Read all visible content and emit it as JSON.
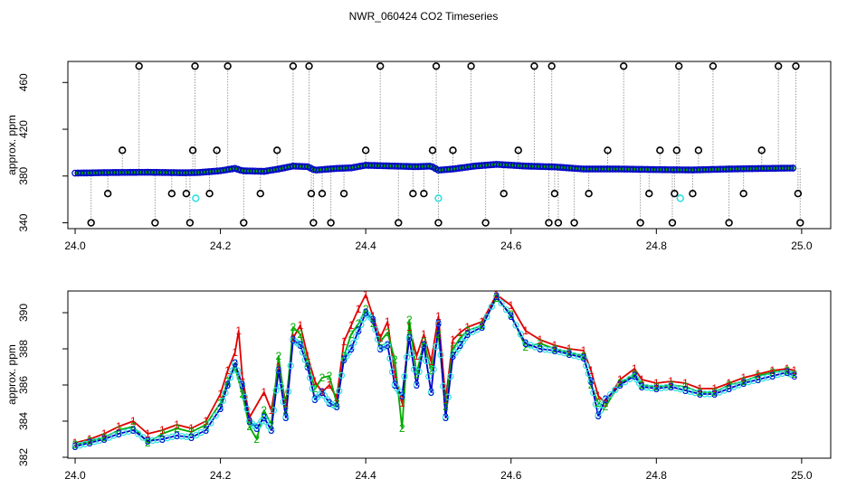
{
  "figure": {
    "title": "NWR_060424  CO2 Timeseries"
  },
  "colors": {
    "axis": "#000000",
    "outlier": "#000000",
    "qc_flag": "#33e0e0",
    "series_1": "#e00000",
    "series_2": "#00aa00",
    "series_3": "#0000cc",
    "drop_line": "#9a9a9a",
    "background": "#ffffff"
  },
  "chart_data": [
    {
      "type": "scatter",
      "title": "",
      "xlabel": "",
      "ylabel": "approx. ppm",
      "xlim": [
        23.99,
        25.04
      ],
      "ylim": [
        335,
        478
      ],
      "xticks": [
        24.0,
        24.2,
        24.4,
        24.6,
        24.8,
        25.0
      ],
      "xtick_labels": [
        "24.0",
        "24.2",
        "24.4",
        "24.6",
        "24.8",
        "25.0"
      ],
      "yticks": [
        340,
        380,
        420,
        460
      ],
      "ytick_labels": [
        "340",
        "380",
        "420",
        "460"
      ],
      "grid": false,
      "baseline": [
        [
          24.0,
          382.5
        ],
        [
          24.05,
          383.0
        ],
        [
          24.1,
          383.2
        ],
        [
          24.15,
          382.8
        ],
        [
          24.17,
          383.0
        ],
        [
          24.2,
          384.5
        ],
        [
          24.22,
          386.5
        ],
        [
          24.23,
          384.5
        ],
        [
          24.26,
          384.0
        ],
        [
          24.28,
          386.0
        ],
        [
          24.3,
          388.5
        ],
        [
          24.32,
          388.0
        ],
        [
          24.33,
          385.0
        ],
        [
          24.36,
          386.5
        ],
        [
          24.38,
          387.0
        ],
        [
          24.4,
          389.2
        ],
        [
          24.44,
          388.5
        ],
        [
          24.47,
          388.0
        ],
        [
          24.49,
          388.5
        ],
        [
          24.5,
          385.0
        ],
        [
          24.52,
          386.0
        ],
        [
          24.55,
          388.5
        ],
        [
          24.58,
          390.0
        ],
        [
          24.62,
          388.5
        ],
        [
          24.66,
          387.8
        ],
        [
          24.7,
          386.0
        ],
        [
          24.75,
          386.0
        ],
        [
          24.8,
          385.5
        ],
        [
          24.85,
          385.2
        ],
        [
          24.9,
          386.0
        ],
        [
          24.95,
          386.5
        ],
        [
          24.99,
          386.8
        ]
      ],
      "outliers": [
        [
          24.022,
          340
        ],
        [
          24.045,
          365
        ],
        [
          24.065,
          402
        ],
        [
          24.088,
          474
        ],
        [
          24.11,
          340
        ],
        [
          24.133,
          365
        ],
        [
          24.153,
          365
        ],
        [
          24.158,
          340
        ],
        [
          24.162,
          402
        ],
        [
          24.165,
          474
        ],
        [
          24.185,
          365
        ],
        [
          24.195,
          402
        ],
        [
          24.21,
          474
        ],
        [
          24.232,
          340
        ],
        [
          24.255,
          365
        ],
        [
          24.278,
          402
        ],
        [
          24.3,
          474
        ],
        [
          24.322,
          474
        ],
        [
          24.325,
          365
        ],
        [
          24.328,
          340
        ],
        [
          24.34,
          365
        ],
        [
          24.352,
          340
        ],
        [
          24.37,
          365
        ],
        [
          24.4,
          402
        ],
        [
          24.42,
          474
        ],
        [
          24.445,
          340
        ],
        [
          24.465,
          365
        ],
        [
          24.48,
          365
        ],
        [
          24.492,
          402
        ],
        [
          24.497,
          474
        ],
        [
          24.5,
          340
        ],
        [
          24.52,
          402
        ],
        [
          24.545,
          474
        ],
        [
          24.565,
          340
        ],
        [
          24.59,
          365
        ],
        [
          24.61,
          402
        ],
        [
          24.632,
          474
        ],
        [
          24.652,
          340
        ],
        [
          24.656,
          474
        ],
        [
          24.66,
          365
        ],
        [
          24.665,
          340
        ],
        [
          24.687,
          340
        ],
        [
          24.707,
          365
        ],
        [
          24.733,
          402
        ],
        [
          24.755,
          474
        ],
        [
          24.778,
          340
        ],
        [
          24.79,
          365
        ],
        [
          24.805,
          402
        ],
        [
          24.822,
          340
        ],
        [
          24.825,
          365
        ],
        [
          24.828,
          402
        ],
        [
          24.831,
          474
        ],
        [
          24.85,
          365
        ],
        [
          24.858,
          402
        ],
        [
          24.878,
          474
        ],
        [
          24.9,
          340
        ],
        [
          24.92,
          365
        ],
        [
          24.945,
          402
        ],
        [
          24.968,
          474
        ],
        [
          24.992,
          474
        ],
        [
          24.995,
          365
        ],
        [
          24.998,
          340
        ]
      ],
      "qc_flagged": [
        [
          24.166,
          361
        ],
        [
          24.5,
          361
        ],
        [
          24.833,
          361
        ]
      ]
    },
    {
      "type": "line",
      "title": "",
      "xlabel": "",
      "ylabel": "approx. ppm",
      "xlim": [
        23.99,
        25.04
      ],
      "ylim": [
        381.95,
        391.2
      ],
      "xticks": [
        24.0,
        24.2,
        24.4,
        24.6,
        24.8,
        25.0
      ],
      "xtick_labels": [
        "24.0",
        "24.2",
        "24.4",
        "24.6",
        "24.8",
        "25.0"
      ],
      "yticks": [
        382,
        384,
        386,
        388,
        390
      ],
      "ytick_labels": [
        "382",
        "384",
        "386",
        "388",
        "390"
      ],
      "grid": false,
      "marker_labels": [
        "1",
        "2",
        "3"
      ],
      "series": [
        {
          "marker": "1",
          "x": [
            24.0,
            24.02,
            24.04,
            24.06,
            24.08,
            24.1,
            24.12,
            24.14,
            24.16,
            24.18,
            24.2,
            24.21,
            24.22,
            24.225,
            24.23,
            24.24,
            24.26,
            24.27,
            24.28,
            24.29,
            24.3,
            24.31,
            24.32,
            24.33,
            24.34,
            24.35,
            24.36,
            24.37,
            24.38,
            24.39,
            24.4,
            24.41,
            24.42,
            24.43,
            24.44,
            24.45,
            24.46,
            24.47,
            24.48,
            24.49,
            24.5,
            24.51,
            24.52,
            24.53,
            24.54,
            24.56,
            24.58,
            24.6,
            24.62,
            24.64,
            24.66,
            24.68,
            24.7,
            24.71,
            24.72,
            24.73,
            24.75,
            24.77,
            24.78,
            24.8,
            24.82,
            24.84,
            24.86,
            24.88,
            24.9,
            24.92,
            24.94,
            24.96,
            24.98,
            24.99
          ],
          "y": [
            382.8,
            383.0,
            383.3,
            383.7,
            384.0,
            383.3,
            383.5,
            383.8,
            383.6,
            384.0,
            385.5,
            386.8,
            387.8,
            389.0,
            386.5,
            384.2,
            385.6,
            384.6,
            387.0,
            385.0,
            388.6,
            389.3,
            387.6,
            386.2,
            385.6,
            386.0,
            385.3,
            388.4,
            389.3,
            390.2,
            391.0,
            389.8,
            388.6,
            389.5,
            386.6,
            385.0,
            389.2,
            387.6,
            388.8,
            387.3,
            389.8,
            385.2,
            388.5,
            388.9,
            389.2,
            389.5,
            391.0,
            390.4,
            389.0,
            388.5,
            388.2,
            388.0,
            387.9,
            386.8,
            385.4,
            385.0,
            386.3,
            386.9,
            386.3,
            386.1,
            386.2,
            386.1,
            385.8,
            385.8,
            386.1,
            386.4,
            386.6,
            386.8,
            386.9,
            386.8
          ]
        },
        {
          "marker": "2",
          "x": [
            24.0,
            24.02,
            24.04,
            24.06,
            24.08,
            24.1,
            24.12,
            24.14,
            24.16,
            24.18,
            24.2,
            24.21,
            24.22,
            24.23,
            24.24,
            24.25,
            24.26,
            24.27,
            24.28,
            24.29,
            24.3,
            24.31,
            24.32,
            24.33,
            24.34,
            24.35,
            24.36,
            24.37,
            24.38,
            24.39,
            24.4,
            24.41,
            24.42,
            24.43,
            24.44,
            24.45,
            24.46,
            24.47,
            24.48,
            24.49,
            24.5,
            24.51,
            24.52,
            24.53,
            24.54,
            24.56,
            24.58,
            24.6,
            24.62,
            24.64,
            24.66,
            24.68,
            24.7,
            24.71,
            24.72,
            24.73,
            24.75,
            24.77,
            24.78,
            24.8,
            24.82,
            24.84,
            24.86,
            24.88,
            24.9,
            24.92,
            24.94,
            24.96,
            24.98,
            24.99
          ],
          "y": [
            382.7,
            382.9,
            383.1,
            383.5,
            383.7,
            382.8,
            383.3,
            383.6,
            383.4,
            383.8,
            385.0,
            386.2,
            387.0,
            385.5,
            383.7,
            383.0,
            384.6,
            383.8,
            387.6,
            384.6,
            389.2,
            388.8,
            387.2,
            385.8,
            386.4,
            386.5,
            385.0,
            387.6,
            388.8,
            389.4,
            390.2,
            389.4,
            388.4,
            388.9,
            387.4,
            383.6,
            389.6,
            386.6,
            388.4,
            386.8,
            388.8,
            384.8,
            388.0,
            388.6,
            389.0,
            389.3,
            390.8,
            389.9,
            388.1,
            388.3,
            388.0,
            387.8,
            387.6,
            386.0,
            385.0,
            384.8,
            386.1,
            386.6,
            386.0,
            385.9,
            386.0,
            385.9,
            385.6,
            385.6,
            386.0,
            386.2,
            386.5,
            386.7,
            386.8,
            386.6
          ]
        },
        {
          "marker": "3",
          "x": [
            24.0,
            24.02,
            24.04,
            24.06,
            24.08,
            24.1,
            24.12,
            24.14,
            24.16,
            24.18,
            24.2,
            24.21,
            24.22,
            24.23,
            24.24,
            24.25,
            24.26,
            24.27,
            24.28,
            24.29,
            24.3,
            24.31,
            24.32,
            24.33,
            24.34,
            24.35,
            24.36,
            24.37,
            24.38,
            24.39,
            24.4,
            24.41,
            24.42,
            24.43,
            24.44,
            24.45,
            24.46,
            24.47,
            24.48,
            24.49,
            24.5,
            24.51,
            24.52,
            24.53,
            24.54,
            24.56,
            24.58,
            24.6,
            24.62,
            24.64,
            24.66,
            24.68,
            24.7,
            24.71,
            24.72,
            24.73,
            24.75,
            24.77,
            24.78,
            24.8,
            24.82,
            24.84,
            24.86,
            24.88,
            24.9,
            24.92,
            24.94,
            24.96,
            24.98,
            24.99
          ],
          "y": [
            382.6,
            382.8,
            383.0,
            383.3,
            383.5,
            382.9,
            383.0,
            383.2,
            383.1,
            383.5,
            384.7,
            386.0,
            387.2,
            386.0,
            384.0,
            383.6,
            384.2,
            383.5,
            386.8,
            384.2,
            388.5,
            388.2,
            387.0,
            385.2,
            385.6,
            385.0,
            384.8,
            387.4,
            388.0,
            389.0,
            390.0,
            389.6,
            388.0,
            388.2,
            386.0,
            385.4,
            388.6,
            386.0,
            388.2,
            385.6,
            389.4,
            384.2,
            387.6,
            388.2,
            388.8,
            389.2,
            390.9,
            389.8,
            388.3,
            388.0,
            387.9,
            387.7,
            387.5,
            386.2,
            384.3,
            385.2,
            386.0,
            386.5,
            385.9,
            385.8,
            385.9,
            385.7,
            385.5,
            385.5,
            385.8,
            386.1,
            386.3,
            386.5,
            386.7,
            386.5
          ]
        }
      ]
    }
  ]
}
